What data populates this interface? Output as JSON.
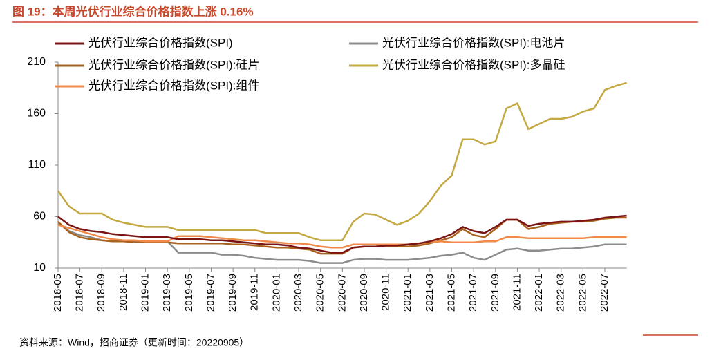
{
  "chart_data": {
    "type": "line",
    "title": "图 19：本周光伏行业综合价格指数上涨 0.16%",
    "source": "资料来源：Wind，招商证券（更新时间：20220905）",
    "categories": [
      "2018-05",
      null,
      "2018-07",
      null,
      "2018-09",
      null,
      "2018-11",
      null,
      "2019-01",
      null,
      "2019-03",
      null,
      "2019-05",
      null,
      "2019-07",
      null,
      "2019-09",
      null,
      "2019-11",
      null,
      "2020-01",
      null,
      "2020-03",
      null,
      "2020-05",
      null,
      "2020-07",
      null,
      "2020-09",
      null,
      "2020-11",
      null,
      "2021-01",
      null,
      "2021-03",
      null,
      "2021-05",
      null,
      "2021-07",
      null,
      "2021-09",
      null,
      "2021-11",
      null,
      "2022-01",
      null,
      "2022-03",
      null,
      "2022-05",
      null,
      "2022-07",
      null,
      null
    ],
    "series": [
      {
        "name": "光伏行业综合价格指数(SPI)",
        "color": "#7b1414",
        "values": [
          60,
          52,
          48,
          46,
          45,
          43,
          42,
          41,
          40,
          40,
          40,
          38,
          38,
          38,
          37,
          37,
          36,
          35,
          34,
          33,
          33,
          32,
          30,
          29,
          27,
          25,
          25,
          30,
          31,
          31,
          32,
          32,
          33,
          34,
          36,
          39,
          43,
          50,
          46,
          44,
          50,
          57,
          57,
          51,
          53,
          54,
          55,
          55,
          56,
          57,
          59,
          60,
          61
        ]
      },
      {
        "name": "光伏行业综合价格指数(SPI):电池片",
        "color": "#8c8c8c",
        "values": [
          54,
          46,
          42,
          40,
          37,
          36,
          36,
          36,
          36,
          36,
          36,
          25,
          25,
          25,
          25,
          23,
          23,
          22,
          20,
          19,
          18,
          18,
          18,
          17,
          15,
          15,
          15,
          18,
          19,
          19,
          18,
          18,
          18,
          19,
          20,
          22,
          23,
          25,
          20,
          18,
          23,
          28,
          29,
          27,
          27,
          28,
          29,
          29,
          30,
          31,
          33,
          33,
          33
        ]
      },
      {
        "name": "光伏行业综合价格指数(SPI):硅片",
        "color": "#a8641e",
        "values": [
          55,
          45,
          40,
          38,
          37,
          36,
          36,
          35,
          35,
          35,
          35,
          34,
          34,
          34,
          34,
          34,
          33,
          33,
          32,
          31,
          30,
          30,
          29,
          28,
          24,
          24,
          24,
          30,
          31,
          31,
          31,
          31,
          31,
          32,
          34,
          37,
          40,
          48,
          42,
          40,
          48,
          57,
          57,
          48,
          50,
          53,
          54,
          55,
          55,
          56,
          58,
          59,
          59
        ]
      },
      {
        "name": "光伏行业综合价格指数(SPI):多晶硅",
        "color": "#c4a842",
        "values": [
          85,
          70,
          63,
          63,
          63,
          57,
          54,
          52,
          50,
          50,
          50,
          47,
          47,
          47,
          47,
          47,
          47,
          47,
          47,
          44,
          44,
          44,
          44,
          40,
          37,
          37,
          37,
          55,
          63,
          62,
          57,
          52,
          56,
          63,
          75,
          90,
          100,
          135,
          135,
          130,
          133,
          165,
          170,
          145,
          150,
          155,
          155,
          157,
          162,
          165,
          183,
          187,
          190
        ]
      },
      {
        "name": "光伏行业综合价格指数(SPI):组件",
        "color": "#f08a4b",
        "values": [
          52,
          49,
          46,
          43,
          40,
          38,
          37,
          37,
          36,
          36,
          36,
          41,
          41,
          41,
          40,
          39,
          38,
          37,
          37,
          36,
          35,
          34,
          34,
          33,
          31,
          30,
          30,
          33,
          33,
          33,
          33,
          33,
          33,
          34,
          35,
          36,
          35,
          35,
          35,
          36,
          36,
          40,
          40,
          39,
          39,
          39,
          39,
          39,
          39,
          40,
          40,
          40,
          40
        ]
      }
    ],
    "ylim": [
      10,
      210
    ],
    "yticks": [
      10,
      60,
      110,
      160,
      210
    ],
    "grid": false
  }
}
